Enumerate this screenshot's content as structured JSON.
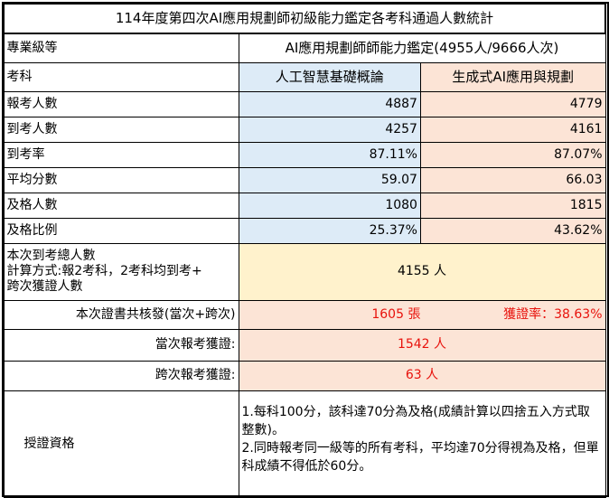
{
  "title": "114年度第四次AI應用規劃師初級能力鑑定各考科通過人數統計",
  "level": {
    "label": "專業級等",
    "value": "AI應用規劃師師能力鑑定(4955人/9666人次)"
  },
  "subjects": {
    "label": "考科",
    "items": [
      "人工智慧基礎概論",
      "生成式AI應用與規劃"
    ]
  },
  "rows": [
    {
      "label": "報考人數",
      "values": [
        "4887",
        "4779"
      ]
    },
    {
      "label": "到考人數",
      "values": [
        "4257",
        "4161"
      ]
    },
    {
      "label": "到考率",
      "values": [
        "87.11%",
        "87.07%"
      ]
    },
    {
      "label": "平均分數",
      "values": [
        "59.07",
        "66.03"
      ]
    },
    {
      "label": "及格人數",
      "values": [
        "1080",
        "1815"
      ]
    },
    {
      "label": "及格比例",
      "values": [
        "25.37%",
        "43.62%"
      ]
    }
  ],
  "total": {
    "label_lines": [
      "本次到考總人數",
      "計算方式:報2考科，2考科均到考+",
      "跨次獲證人數"
    ],
    "value": "4155 人"
  },
  "certs": {
    "label": "本次證書共核發(當次+跨次)",
    "value": "1605 張",
    "rate": "獲證率：38.63%"
  },
  "current": {
    "label": "當次報考獲證:",
    "value": "1542 人"
  },
  "cross": {
    "label": "跨次報考獲證:",
    "value": "63 人"
  },
  "qualification": {
    "label": "授證資格",
    "lines": [
      "1.每科100分，該科達70分為及格(成績計算以四捨五入方式取整數)。",
      "2.同時報考同一級等的所有考科，平均達70分得視為及格，但單科成績不得低於60分。"
    ]
  },
  "colors": {
    "blue": "#DDEBF7",
    "peach": "#FCE4D6",
    "yellow": "#FFF2CC",
    "red": "#E8120C"
  }
}
